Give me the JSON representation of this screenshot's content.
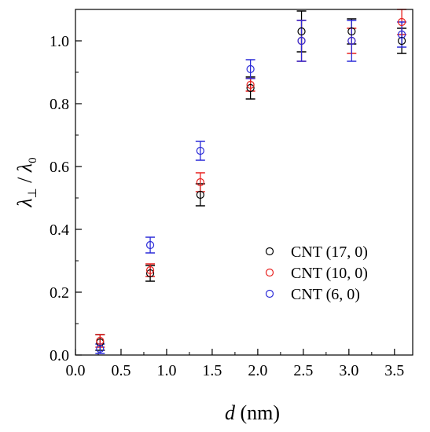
{
  "chart_data": {
    "type": "scatter",
    "xlabel": "d (nm)",
    "ylabel": "λ⊥ / λ0",
    "xlim": [
      0.0,
      3.7
    ],
    "ylim": [
      0.0,
      1.1
    ],
    "x_ticks": [
      "0.0",
      "0.5",
      "1.0",
      "1.5",
      "2.0",
      "2.5",
      "3.0",
      "3.5"
    ],
    "y_ticks": [
      "0.0",
      "0.2",
      "0.4",
      "0.6",
      "0.8",
      "1.0"
    ],
    "grid": false,
    "legend_position": "center-right",
    "series": [
      {
        "name": "CNT (17, 0)",
        "color": "#000000",
        "marker": "open-circle",
        "x": [
          0.27,
          0.82,
          1.37,
          1.92,
          2.48,
          3.03,
          3.58
        ],
        "y": [
          0.04,
          0.26,
          0.51,
          0.85,
          1.03,
          1.03,
          1.0
        ],
        "err": [
          0.025,
          0.025,
          0.035,
          0.035,
          0.065,
          0.04,
          0.04
        ]
      },
      {
        "name": "CNT (10, 0)",
        "color": "#e8211f",
        "marker": "open-circle",
        "x": [
          0.27,
          0.82,
          1.37,
          1.92,
          2.48,
          3.03,
          3.58
        ],
        "y": [
          0.045,
          0.27,
          0.55,
          0.86,
          1.0,
          1.0,
          1.06
        ],
        "err": [
          0.02,
          0.02,
          0.03,
          0.02,
          0.065,
          0.04,
          0.04
        ]
      },
      {
        "name": "CNT (6, 0)",
        "color": "#2b2bd8",
        "marker": "open-circle",
        "x": [
          0.27,
          0.82,
          1.37,
          1.92,
          2.48,
          3.03,
          3.58
        ],
        "y": [
          0.02,
          0.35,
          0.65,
          0.91,
          1.0,
          1.0,
          1.02
        ],
        "err": [
          0.015,
          0.025,
          0.03,
          0.03,
          0.065,
          0.065,
          0.04
        ]
      }
    ]
  }
}
